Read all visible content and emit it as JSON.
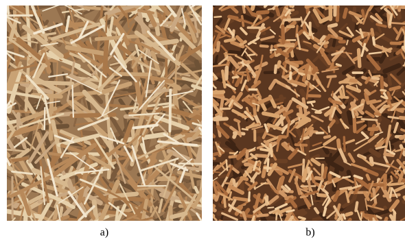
{
  "panels": [
    {
      "label": "a)"
    },
    {
      "label": "b)"
    }
  ]
}
